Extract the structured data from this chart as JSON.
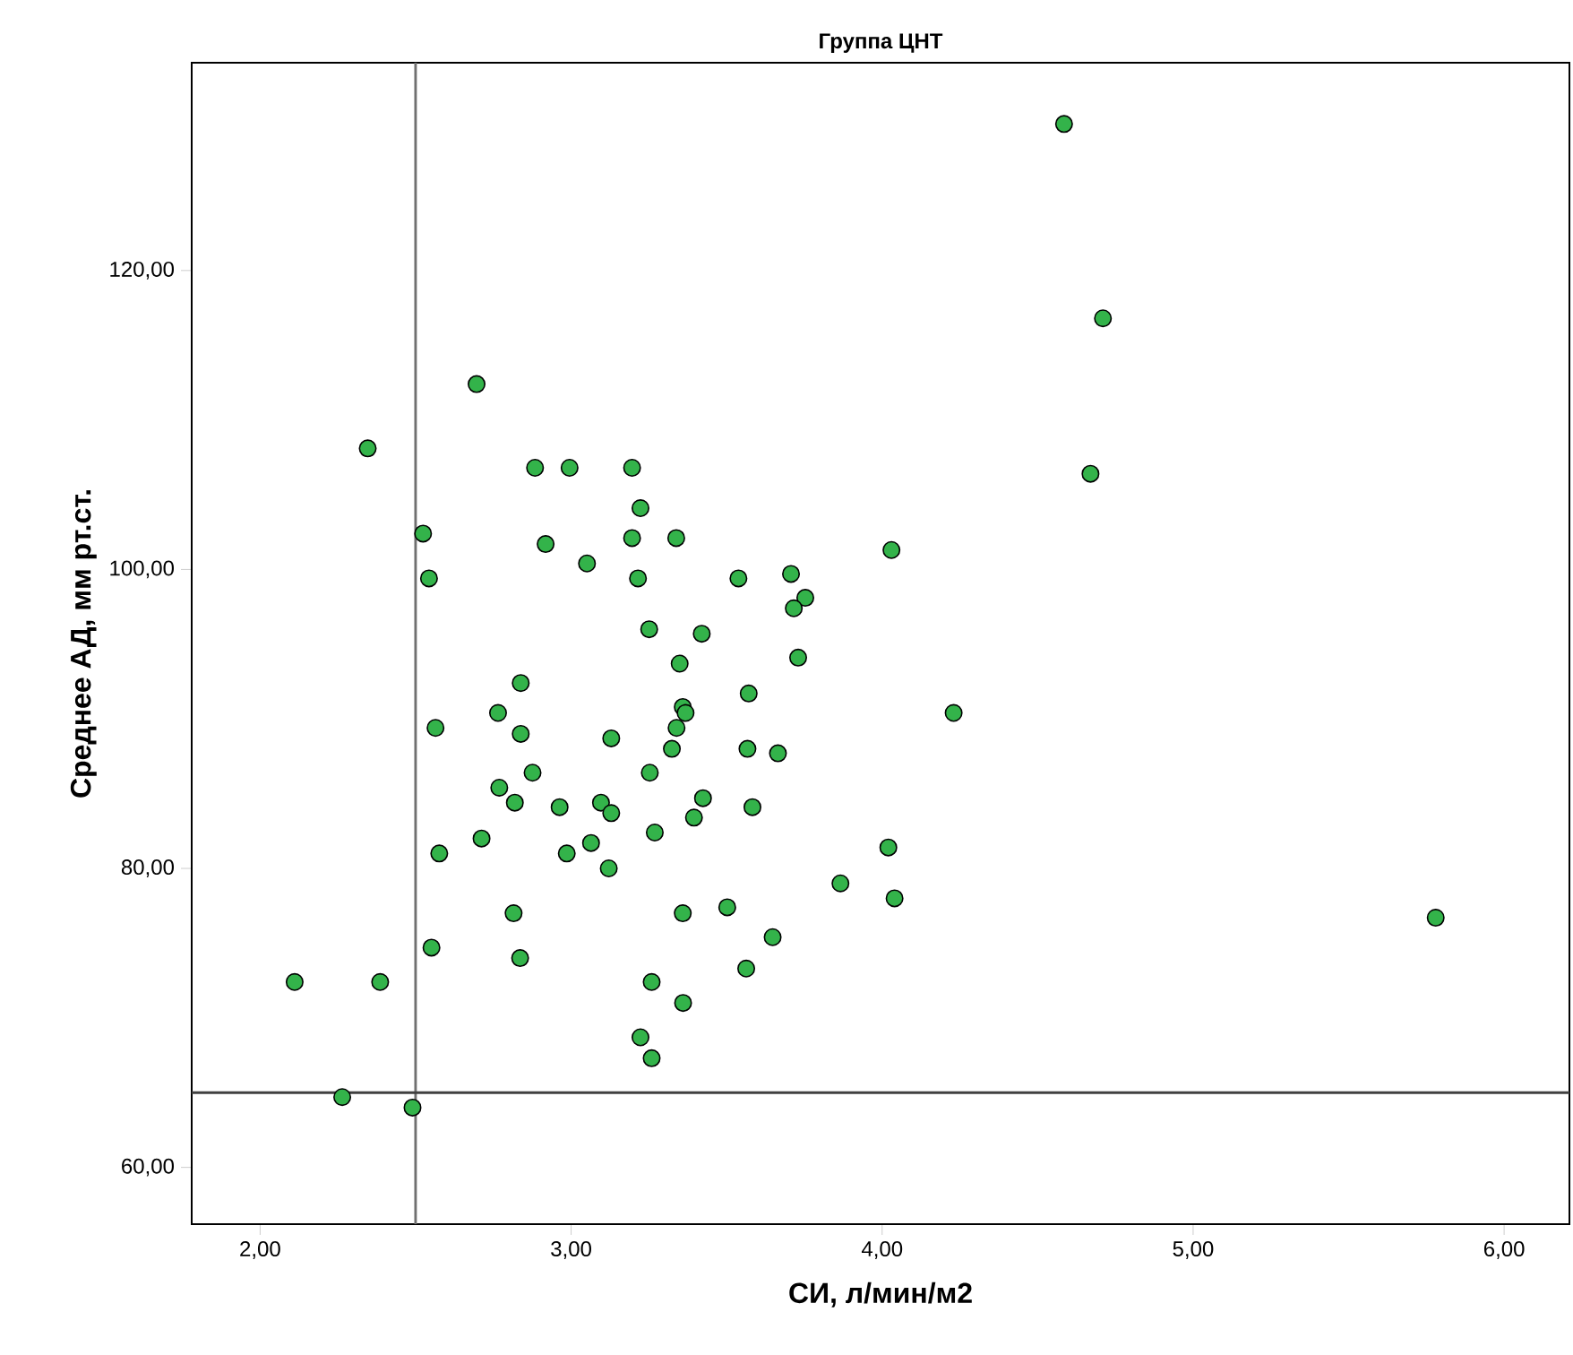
{
  "chart_data": {
    "type": "scatter",
    "title": "Группа ЦНТ",
    "xlabel": "СИ, л/мин/м2",
    "ylabel": "Среднее АД, мм рт.ст.",
    "xlim": [
      1.78,
      6.21
    ],
    "ylim": [
      56.2,
      133.9
    ],
    "xticks": [
      {
        "value": 2,
        "label": "2,00"
      },
      {
        "value": 3,
        "label": "3,00"
      },
      {
        "value": 4,
        "label": "4,00"
      },
      {
        "value": 5,
        "label": "5,00"
      },
      {
        "value": 6,
        "label": "6,00"
      }
    ],
    "yticks": [
      {
        "value": 60,
        "label": "60,00"
      },
      {
        "value": 80,
        "label": "80,00"
      },
      {
        "value": 100,
        "label": "100,00"
      },
      {
        "value": 120,
        "label": "120,00"
      }
    ],
    "marker": "circle",
    "ref_lines": [
      {
        "axis": "x",
        "value": 2.5,
        "color": "#707070"
      },
      {
        "axis": "y",
        "value": 65,
        "color": "#404040"
      }
    ],
    "series": [
      {
        "color": "#33b34a",
        "x": [
          4.585,
          4.71,
          4.67,
          4.03,
          4.23,
          4.02,
          4.04,
          5.78,
          2.346,
          2.696,
          2.524,
          2.543,
          2.884,
          2.995,
          3.196,
          3.223,
          2.918,
          3.196,
          3.338,
          3.051,
          3.215,
          3.538,
          3.707,
          3.753,
          3.716,
          3.251,
          3.42,
          3.73,
          3.349,
          2.838,
          3.571,
          3.359,
          3.368,
          2.765,
          2.564,
          2.838,
          3.339,
          3.129,
          3.324,
          3.567,
          3.665,
          2.876,
          3.253,
          2.769,
          2.819,
          2.963,
          3.096,
          3.129,
          3.424,
          3.395,
          3.583,
          3.269,
          2.712,
          2.986,
          3.064,
          2.576,
          3.121,
          3.866,
          2.815,
          3.359,
          3.502,
          3.648,
          2.551,
          2.836,
          3.563,
          2.111,
          2.386,
          3.259,
          3.36,
          3.223,
          3.259,
          2.264,
          2.49
        ],
        "values": [
          129.8,
          116.8,
          106.4,
          101.3,
          90.4,
          81.4,
          78.0,
          76.7,
          108.1,
          112.4,
          102.4,
          99.4,
          106.8,
          106.8,
          106.8,
          104.1,
          101.7,
          102.1,
          102.1,
          100.4,
          99.4,
          99.4,
          99.7,
          98.1,
          97.4,
          96.0,
          95.7,
          94.1,
          93.7,
          92.4,
          91.7,
          90.8,
          90.4,
          90.4,
          89.4,
          89.0,
          89.4,
          88.7,
          88.0,
          88.0,
          87.7,
          86.4,
          86.4,
          85.4,
          84.4,
          84.1,
          84.4,
          83.7,
          84.7,
          83.4,
          84.1,
          82.4,
          82.0,
          81.0,
          81.7,
          81.0,
          80.0,
          79.0,
          77.0,
          77.0,
          77.4,
          75.4,
          74.7,
          74.0,
          73.3,
          72.4,
          72.4,
          72.4,
          71.0,
          68.7,
          67.3,
          64.7,
          64.0
        ]
      }
    ]
  }
}
